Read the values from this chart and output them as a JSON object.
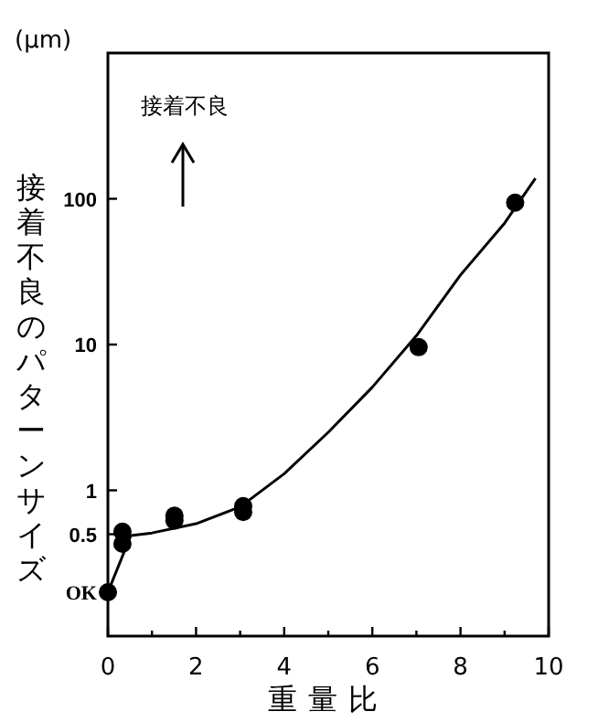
{
  "chart_data": {
    "type": "scatter",
    "ylabel": "接着不良のパターンサイズ",
    "xlabel": "重量比",
    "annotations": [
      "(μm)",
      "接着不良"
    ],
    "log": "y",
    "xlim": [
      0,
      10
    ],
    "ylim": [
      0.1,
      1000
    ],
    "xticks": [
      0,
      {
        "value": 1,
        "label": null
      },
      2,
      {
        "value": 3,
        "label": null
      },
      4,
      {
        "value": 5,
        "label": null
      },
      6,
      {
        "value": 7,
        "label": null
      },
      8,
      {
        "value": 9,
        "label": null
      },
      10
    ],
    "yticks": [
      {
        "value": 0.2,
        "label": "OK"
      },
      0.5,
      1,
      10,
      100
    ],
    "grid": false,
    "series": [
      {
        "type": "line",
        "color": "#000000",
        "marker": "none",
        "line_style": "solid",
        "x": [
          0,
          0.52,
          1,
          2,
          3,
          4,
          5,
          6,
          7,
          8,
          9,
          9.7
        ],
        "values": [
          0.2,
          0.49,
          0.51,
          0.59,
          0.77,
          1.3,
          2.5,
          5.1,
          11.5,
          30,
          68,
          138
        ]
      },
      {
        "color": "#000000",
        "marker": "circle",
        "x": [
          0,
          0.33,
          0.33,
          1.51,
          1.51,
          3.07,
          3.07,
          7.05,
          9.24
        ],
        "values": [
          0.2,
          0.52,
          0.43,
          0.67,
          0.62,
          0.78,
          0.71,
          9.6,
          94
        ]
      }
    ]
  }
}
